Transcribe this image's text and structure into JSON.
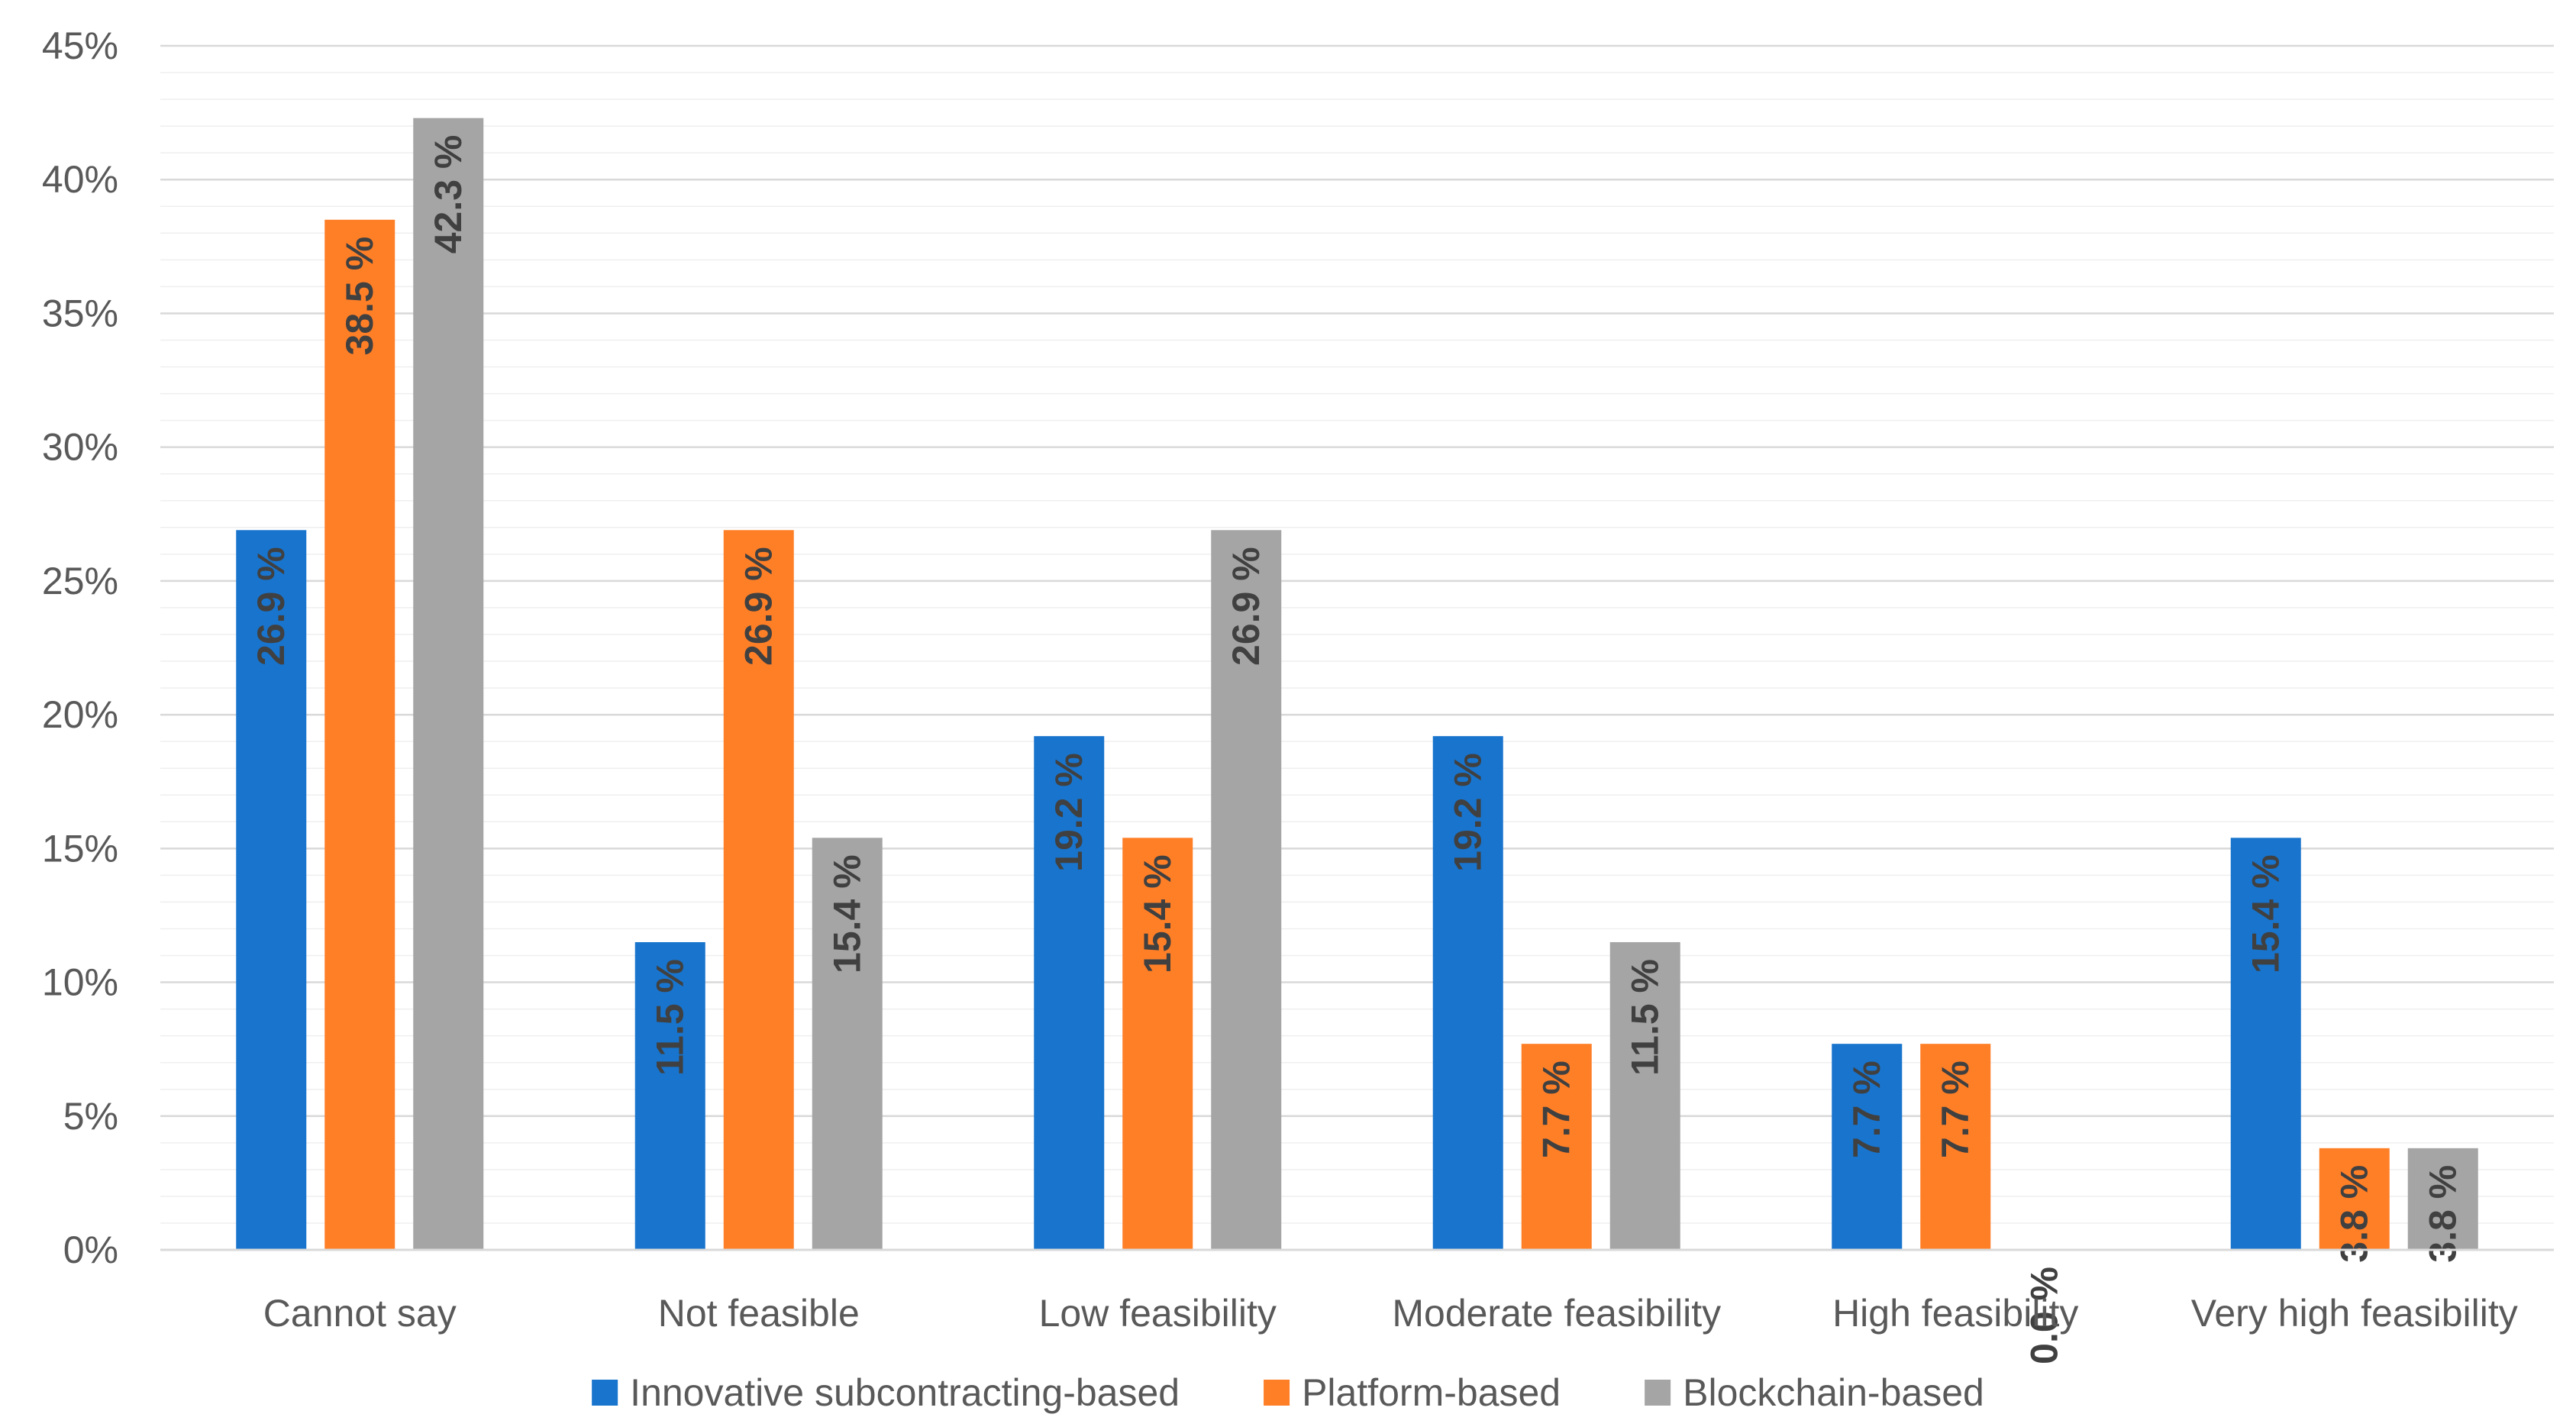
{
  "chart_data": {
    "type": "bar",
    "title": "",
    "xlabel": "",
    "ylabel": "",
    "ylim": [
      0,
      45
    ],
    "ytick_step": 5,
    "ytick_labels": [
      "0%",
      "5%",
      "10%",
      "15%",
      "20%",
      "25%",
      "30%",
      "35%",
      "40%",
      "45%"
    ],
    "grid": true,
    "legend_position": "bottom",
    "categories": [
      "Cannot say",
      "Not feasible",
      "Low feasibility",
      "Moderate feasibility",
      "High feasibility",
      "Very high feasibility"
    ],
    "series": [
      {
        "name": "Innovative subcontracting-based",
        "color": "#1874CD",
        "values": [
          26.9,
          11.5,
          19.2,
          19.2,
          7.7,
          15.4
        ],
        "labels": [
          "26.9 %",
          "11.5 %",
          "19.2 %",
          "19.2 %",
          "7.7 %",
          "15.4 %"
        ]
      },
      {
        "name": "Platform-based",
        "color": "#FF7F27",
        "values": [
          38.5,
          26.9,
          15.4,
          7.7,
          7.7,
          3.8
        ],
        "labels": [
          "38.5 %",
          "26.9 %",
          "15.4 %",
          "7.7 %",
          "7.7 %",
          "3.8 %"
        ]
      },
      {
        "name": "Blockchain-based",
        "color": "#A5A5A5",
        "values": [
          42.3,
          15.4,
          26.9,
          11.5,
          0.0,
          3.8
        ],
        "labels": [
          "42.3 %",
          "15.4 %",
          "26.9 %",
          "11.5 %",
          "0.0 %",
          "3.8 %"
        ]
      }
    ]
  }
}
